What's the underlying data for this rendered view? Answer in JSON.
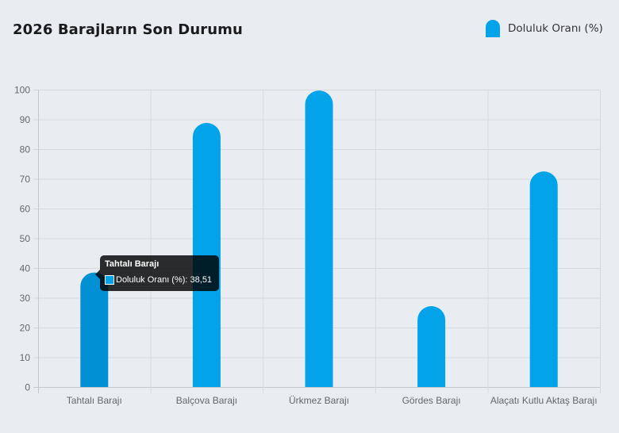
{
  "title": "2026 Barajların Son Durumu",
  "legend": {
    "label": "Doluluk Oranı (%)",
    "color": "#03a3ea"
  },
  "tooltip": {
    "title": "Tahtalı Barajı",
    "label": "Doluluk Oranı (%): 38,51"
  },
  "chart_data": {
    "type": "bar",
    "title": "2026 Barajların Son Durumu",
    "categories": [
      "Tahtalı Barajı",
      "Balçova Barajı",
      "Ürkmez Barajı",
      "Gördes Barajı",
      "Alaçatı Kutlu Aktaş Barajı"
    ],
    "series": [
      {
        "name": "Doluluk Oranı (%)",
        "values": [
          38.51,
          88.8,
          99.7,
          27.2,
          72.5
        ],
        "color": "#03a3ea"
      }
    ],
    "xlabel": "",
    "ylabel": "",
    "ylim": [
      0,
      100
    ],
    "yticks": [
      0,
      10,
      20,
      30,
      40,
      50,
      60,
      70,
      80,
      90,
      100
    ],
    "grid": true,
    "legend_position": "top-right",
    "hovered_index": 0,
    "hover_color": "#0290d4"
  }
}
